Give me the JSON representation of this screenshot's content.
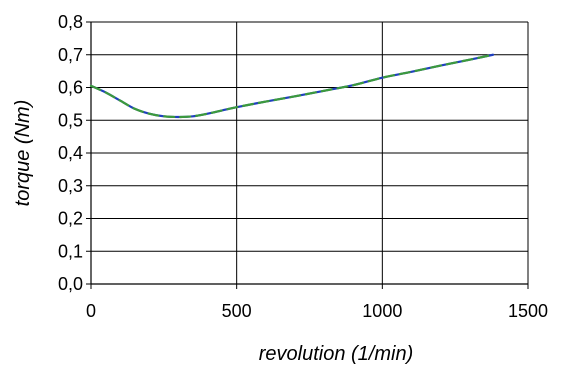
{
  "chart_data": {
    "type": "line",
    "title": "",
    "xlabel": "revolution (1/min)",
    "ylabel": "torque (Nm)",
    "xlim": [
      0,
      1500
    ],
    "ylim": [
      0,
      0.8
    ],
    "x_ticks": [
      "0",
      "500",
      "1000",
      "1500"
    ],
    "y_ticks": [
      "0,0",
      "0,1",
      "0,2",
      "0,3",
      "0,4",
      "0,5",
      "0,6",
      "0,7",
      "0,8"
    ],
    "grid": true,
    "legend": "none",
    "series": [
      {
        "color": "#1f3fbf",
        "values": [
          [
            0,
            0.605
          ],
          [
            50,
            0.585
          ],
          [
            100,
            0.56
          ],
          [
            150,
            0.535
          ],
          [
            200,
            0.52
          ],
          [
            250,
            0.512
          ],
          [
            300,
            0.51
          ],
          [
            350,
            0.512
          ],
          [
            400,
            0.52
          ],
          [
            450,
            0.53
          ],
          [
            500,
            0.54
          ],
          [
            600,
            0.557
          ],
          [
            700,
            0.573
          ],
          [
            800,
            0.59
          ],
          [
            900,
            0.607
          ],
          [
            1000,
            0.63
          ],
          [
            1100,
            0.648
          ],
          [
            1200,
            0.667
          ],
          [
            1300,
            0.685
          ],
          [
            1380,
            0.7
          ]
        ]
      },
      {
        "color": "#3c9a3c",
        "dashed": true,
        "values": [
          [
            0,
            0.605
          ],
          [
            50,
            0.585
          ],
          [
            100,
            0.56
          ],
          [
            150,
            0.535
          ],
          [
            200,
            0.52
          ],
          [
            250,
            0.512
          ],
          [
            300,
            0.51
          ],
          [
            350,
            0.512
          ],
          [
            400,
            0.52
          ],
          [
            450,
            0.53
          ],
          [
            500,
            0.54
          ],
          [
            600,
            0.557
          ],
          [
            700,
            0.573
          ],
          [
            800,
            0.59
          ],
          [
            900,
            0.607
          ],
          [
            1000,
            0.63
          ],
          [
            1100,
            0.648
          ],
          [
            1200,
            0.667
          ],
          [
            1300,
            0.685
          ],
          [
            1380,
            0.7
          ]
        ]
      }
    ]
  }
}
